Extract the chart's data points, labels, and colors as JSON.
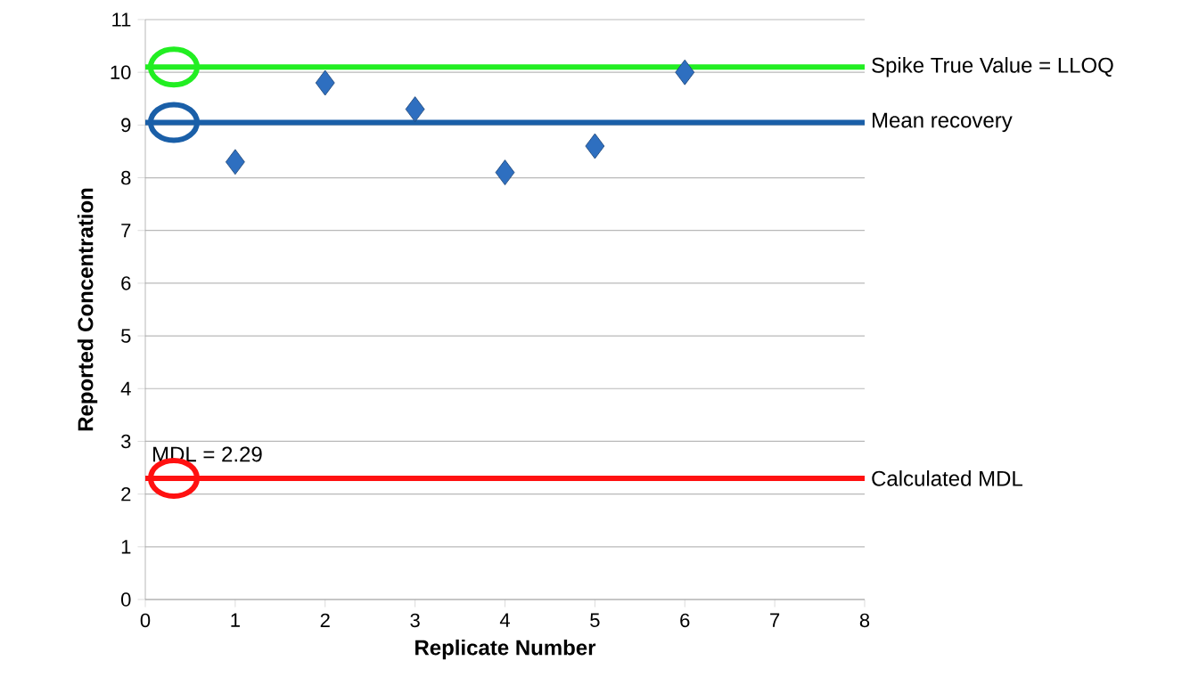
{
  "chart_data": {
    "type": "scatter",
    "xlabel": "Replicate Number",
    "ylabel": "Reported Concentration",
    "x": [
      1,
      2,
      3,
      4,
      5,
      6
    ],
    "values": [
      8.3,
      9.8,
      9.3,
      8.1,
      8.6,
      10.0
    ],
    "color": "#2e6fc0",
    "marker": "diamond",
    "xlim": [
      0,
      8
    ],
    "xticks": [
      0,
      1,
      2,
      3,
      4,
      5,
      6,
      7,
      8
    ],
    "ylim": [
      0,
      11
    ],
    "yticks": [
      0,
      1,
      2,
      3,
      4,
      5,
      6,
      7,
      8,
      9,
      10,
      11
    ],
    "grid": "y",
    "ref_lines": [
      {
        "axis": "y",
        "value": 10.1,
        "label": "Spike True Value = LLOQ",
        "color": "#22ee22"
      },
      {
        "axis": "y",
        "value": 9.05,
        "label": "Mean recovery",
        "color": "#1a5fa8"
      },
      {
        "axis": "y",
        "value": 2.3,
        "label": "Calculated MDL",
        "color": "#ff1111"
      }
    ],
    "annotations": [
      {
        "text": "MDL = 2.29",
        "x": 0,
        "y": 2.29
      }
    ]
  }
}
